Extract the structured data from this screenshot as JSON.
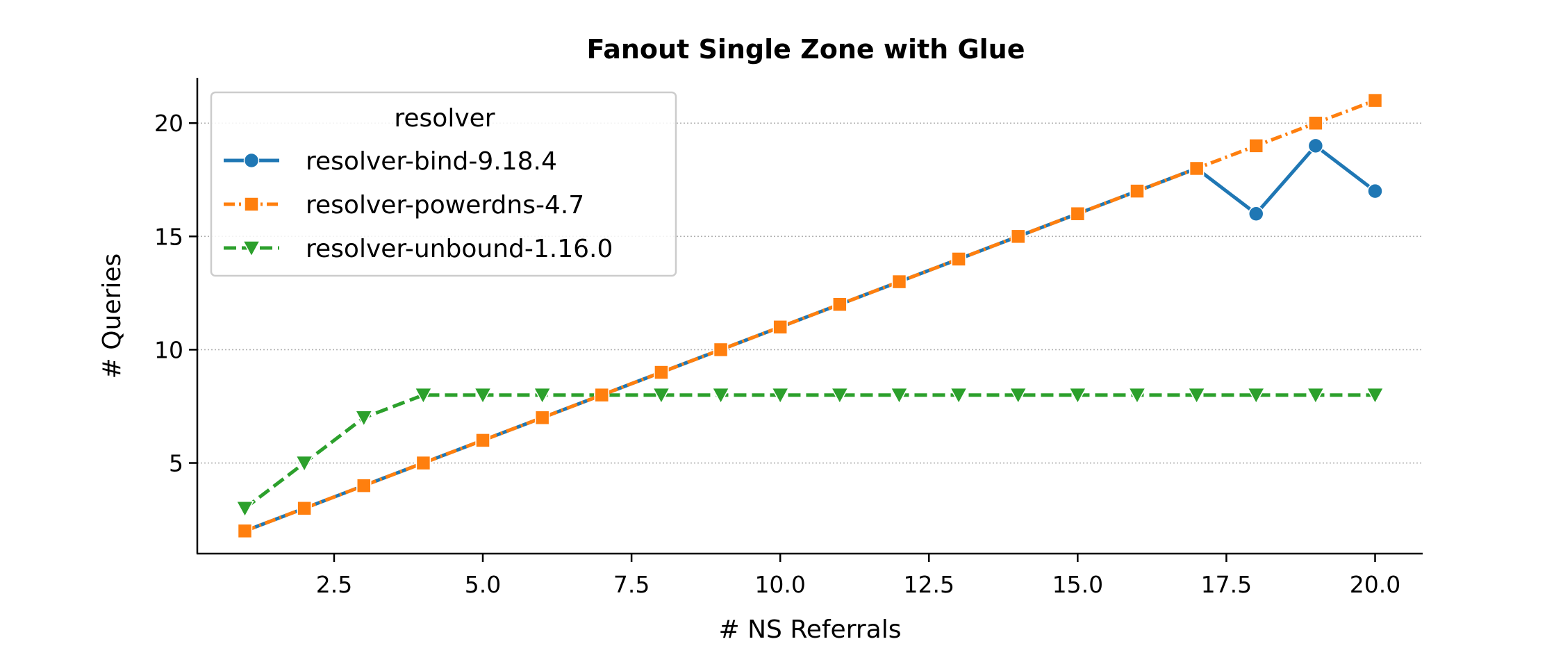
{
  "chart_data": {
    "type": "line",
    "title": "Fanout Single Zone with Glue",
    "xlabel": "# NS Referrals",
    "ylabel": "# Queries",
    "xlim": [
      0.2,
      20.8
    ],
    "ylim": [
      1.0,
      22.0
    ],
    "xticks": [
      "2.5",
      "5.0",
      "7.5",
      "10.0",
      "12.5",
      "15.0",
      "17.5",
      "20.0"
    ],
    "yticks": [
      "5",
      "10",
      "15",
      "20"
    ],
    "grid": "horizontal dotted",
    "legend": {
      "title": "resolver",
      "placement": "top-left"
    },
    "x": [
      1,
      2,
      3,
      4,
      5,
      6,
      7,
      8,
      9,
      10,
      11,
      12,
      13,
      14,
      15,
      16,
      17,
      18,
      19,
      20
    ],
    "series": [
      {
        "name": "resolver-bind-9.18.4",
        "color": "#1f77b4",
        "marker": "circle",
        "dash": "solid",
        "values": [
          2,
          3,
          4,
          5,
          6,
          7,
          8,
          9,
          10,
          11,
          12,
          13,
          14,
          15,
          16,
          17,
          18,
          16,
          19,
          17
        ]
      },
      {
        "name": "resolver-powerdns-4.7",
        "color": "#ff7f0e",
        "marker": "square",
        "dash": "dashdot",
        "values": [
          2,
          3,
          4,
          5,
          6,
          7,
          8,
          9,
          10,
          11,
          12,
          13,
          14,
          15,
          16,
          17,
          18,
          19,
          20,
          21
        ]
      },
      {
        "name": "resolver-unbound-1.16.0",
        "color": "#2ca02c",
        "marker": "triangle-down",
        "dash": "dashed",
        "values": [
          3,
          5,
          7,
          8,
          8,
          8,
          8,
          8,
          8,
          8,
          8,
          8,
          8,
          8,
          8,
          8,
          8,
          8,
          8,
          8
        ]
      }
    ]
  }
}
